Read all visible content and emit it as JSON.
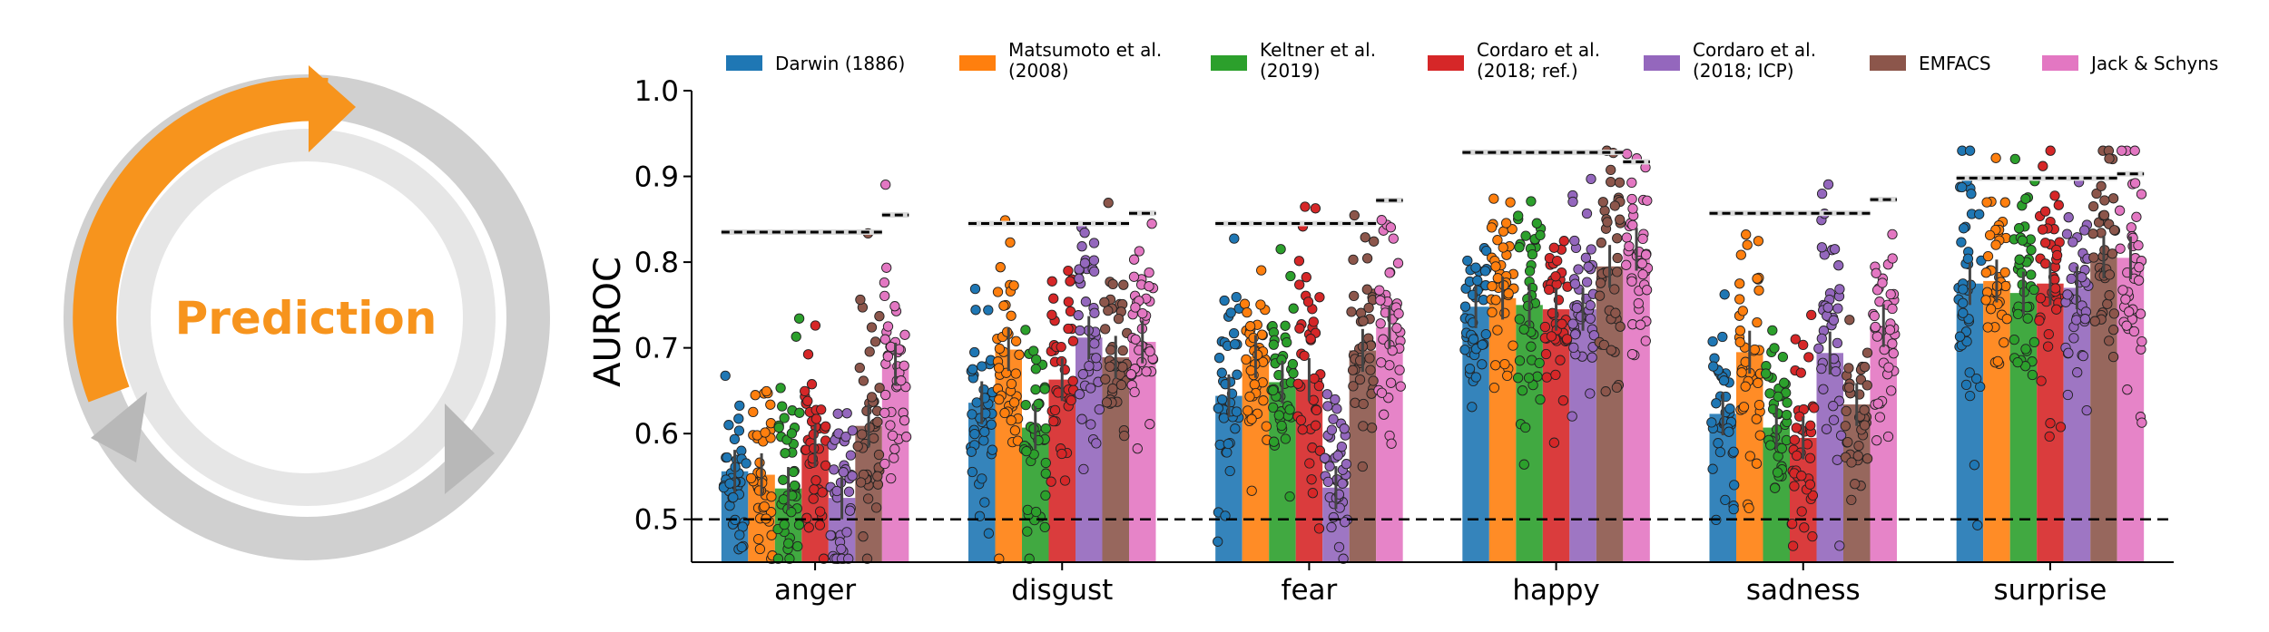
{
  "cycle": {
    "label": "Prediction",
    "accent": "#F7941D",
    "ring_color": "#D0D0D0",
    "ring_shade": "#B8B8B8",
    "inner_color": "#E6E6E6"
  },
  "chart_data": {
    "type": "bar",
    "ylabel": "AUROC",
    "xlabel": "",
    "ylim": [
      0.45,
      1.0
    ],
    "yticks": [
      "0.5",
      "0.6",
      "0.7",
      "0.8",
      "0.9",
      "1.0"
    ],
    "chance_level": 0.5,
    "grid": false,
    "legend_position": "top",
    "categories": [
      "anger",
      "disgust",
      "fear",
      "happy",
      "sadness",
      "surprise"
    ],
    "series": [
      {
        "name": "Darwin (1886)",
        "color": "#1F77B4",
        "values": [
          0.556,
          0.636,
          0.644,
          0.748,
          0.623,
          0.775
        ]
      },
      {
        "name": "Matsumoto et al.\n(2008)",
        "color": "#FF7F0E",
        "values": [
          0.552,
          0.698,
          0.69,
          0.758,
          0.695,
          0.778
        ]
      },
      {
        "name": "Keltner et al.\n(2019)",
        "color": "#2CA02C",
        "values": [
          0.536,
          0.607,
          0.66,
          0.75,
          0.607,
          0.764
        ]
      },
      {
        "name": "Cordaro et al.\n(2018; ref.)",
        "color": "#D62728",
        "values": [
          0.586,
          0.663,
          0.663,
          0.745,
          0.595,
          0.775
        ]
      },
      {
        "name": "Cordaro et al.\n(2018; ICP)",
        "color": "#9467BD",
        "values": [
          0.525,
          0.712,
          0.537,
          0.745,
          0.694,
          0.77
        ]
      },
      {
        "name": "EMFACS",
        "color": "#8C564B",
        "values": [
          0.609,
          0.689,
          0.697,
          0.795,
          0.634,
          0.806
        ]
      },
      {
        "name": "Jack & Schyns",
        "color": "#E377C2",
        "values": [
          0.681,
          0.707,
          0.724,
          0.815,
          0.726,
          0.805
        ]
      }
    ],
    "noise_ceiling": [
      {
        "category": "anger",
        "group_ceiling": 0.835,
        "jack_schyns_ceiling": 0.855
      },
      {
        "category": "disgust",
        "group_ceiling": 0.845,
        "jack_schyns_ceiling": 0.857
      },
      {
        "category": "fear",
        "group_ceiling": 0.845,
        "jack_schyns_ceiling": 0.872
      },
      {
        "category": "happy",
        "group_ceiling": 0.928,
        "jack_schyns_ceiling": 0.917
      },
      {
        "category": "sadness",
        "group_ceiling": 0.857,
        "jack_schyns_ceiling": 0.873
      },
      {
        "category": "surprise",
        "group_ceiling": 0.898,
        "jack_schyns_ceiling": 0.903
      }
    ]
  }
}
